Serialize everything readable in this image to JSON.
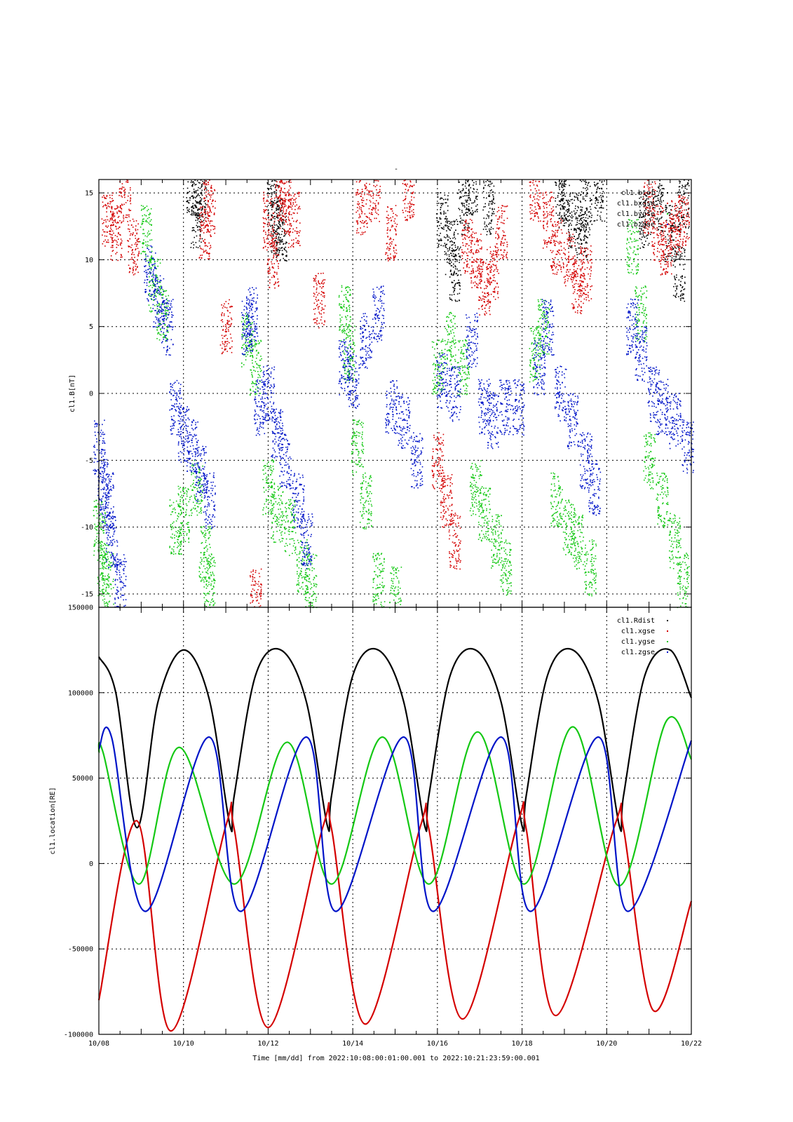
{
  "page_title": "-",
  "x_axis": {
    "label": "Time [mm/dd]  from 2022:10:08:00:01:00.001  to  2022:10:21:23:59:00.001",
    "ticks": [
      {
        "value": 0,
        "label": "10/08"
      },
      {
        "value": 2,
        "label": "10/10"
      },
      {
        "value": 4,
        "label": "10/12"
      },
      {
        "value": 6,
        "label": "10/14"
      },
      {
        "value": 8,
        "label": "10/16"
      },
      {
        "value": 10,
        "label": "10/18"
      },
      {
        "value": 12,
        "label": "10/20"
      },
      {
        "value": 14,
        "label": "10/22"
      }
    ],
    "range_days": [
      0,
      14
    ]
  },
  "colors": {
    "black": "#000000",
    "red": "#d40000",
    "green": "#14c814",
    "blue": "#0014c8"
  },
  "chart_data": [
    {
      "type": "scatter",
      "ylabel": "cl1.B[nT]",
      "ylim": [
        -16,
        16
      ],
      "yticks": [
        15,
        10,
        5,
        0,
        -5,
        -10,
        -15
      ],
      "xlim_days": [
        0,
        14
      ],
      "grid": true,
      "legend_position": "top-right",
      "series": [
        {
          "name": "cl1.btot",
          "color": "#000000",
          "points": [
            [
              2.2,
              15.5
            ],
            [
              2.3,
              13
            ],
            [
              2.4,
              15
            ],
            [
              4.1,
              14
            ],
            [
              4.2,
              12.5
            ],
            [
              4.3,
              12
            ],
            [
              8.1,
              13
            ],
            [
              8.3,
              11
            ],
            [
              8.4,
              9
            ],
            [
              8.6,
              14
            ],
            [
              8.8,
              15.5
            ],
            [
              9.2,
              14
            ],
            [
              10.9,
              15
            ],
            [
              11.0,
              14.5
            ],
            [
              11.2,
              13
            ],
            [
              11.4,
              12
            ],
            [
              11.5,
              14
            ],
            [
              11.8,
              15
            ],
            [
              12.9,
              13
            ],
            [
              13.2,
              14
            ],
            [
              13.5,
              12
            ],
            [
              13.7,
              9
            ],
            [
              13.8,
              14
            ]
          ]
        },
        {
          "name": "cl1.bxgse",
          "color": "#d40000",
          "points": [
            [
              0.2,
              13
            ],
            [
              0.4,
              12
            ],
            [
              0.6,
              15
            ],
            [
              0.8,
              11
            ],
            [
              2.6,
              14
            ],
            [
              2.5,
              12
            ],
            [
              3.0,
              5
            ],
            [
              4.0,
              13
            ],
            [
              4.1,
              10
            ],
            [
              4.3,
              15
            ],
            [
              4.4,
              14
            ],
            [
              4.6,
              13
            ],
            [
              5.2,
              7
            ],
            [
              6.2,
              14
            ],
            [
              6.5,
              15
            ],
            [
              6.9,
              12
            ],
            [
              7.3,
              15
            ],
            [
              8.0,
              -5
            ],
            [
              8.2,
              -8
            ],
            [
              8.4,
              -11
            ],
            [
              8.7,
              11
            ],
            [
              8.9,
              10
            ],
            [
              9.1,
              8
            ],
            [
              9.3,
              9
            ],
            [
              9.5,
              12
            ],
            [
              10.3,
              15
            ],
            [
              10.6,
              13
            ],
            [
              10.8,
              11
            ],
            [
              11.1,
              10
            ],
            [
              11.3,
              8
            ],
            [
              11.5,
              9
            ],
            [
              13.0,
              14
            ],
            [
              13.2,
              12
            ],
            [
              13.4,
              11
            ],
            [
              13.6,
              12.5
            ],
            [
              13.8,
              13
            ],
            [
              3.7,
              -15.2
            ]
          ]
        },
        {
          "name": "cl1.bygse",
          "color": "#14c814",
          "points": [
            [
              0.0,
              -10
            ],
            [
              0.1,
              -13
            ],
            [
              0.2,
              -14
            ],
            [
              1.1,
              12
            ],
            [
              1.3,
              8
            ],
            [
              1.5,
              6
            ],
            [
              1.8,
              -10
            ],
            [
              2.0,
              -9
            ],
            [
              2.3,
              -7
            ],
            [
              2.5,
              -12
            ],
            [
              2.6,
              -14
            ],
            [
              3.5,
              4
            ],
            [
              3.7,
              2
            ],
            [
              4.0,
              -7
            ],
            [
              4.2,
              -9
            ],
            [
              4.5,
              -10
            ],
            [
              4.8,
              -13
            ],
            [
              5.0,
              -14
            ],
            [
              5.8,
              6
            ],
            [
              5.9,
              3
            ],
            [
              6.1,
              -4
            ],
            [
              6.3,
              -8
            ],
            [
              6.6,
              -14
            ],
            [
              7.0,
              -15
            ],
            [
              8.0,
              2
            ],
            [
              8.3,
              4
            ],
            [
              8.6,
              2
            ],
            [
              8.9,
              -7
            ],
            [
              9.1,
              -9
            ],
            [
              9.4,
              -11
            ],
            [
              9.6,
              -13
            ],
            [
              10.3,
              3
            ],
            [
              10.5,
              5
            ],
            [
              10.8,
              -8
            ],
            [
              11.1,
              -10
            ],
            [
              11.3,
              -11
            ],
            [
              11.6,
              -13
            ],
            [
              12.6,
              11
            ],
            [
              12.8,
              6
            ],
            [
              13.0,
              -5
            ],
            [
              13.3,
              -8
            ],
            [
              13.6,
              -11
            ],
            [
              13.8,
              -14
            ]
          ]
        },
        {
          "name": "cl1.bzgse",
          "color": "#0014c8",
          "points": [
            [
              0.0,
              -4
            ],
            [
              0.1,
              -7
            ],
            [
              0.2,
              -8
            ],
            [
              0.3,
              -11
            ],
            [
              0.5,
              -14
            ],
            [
              1.2,
              9
            ],
            [
              1.4,
              7
            ],
            [
              1.6,
              5
            ],
            [
              1.8,
              -1
            ],
            [
              2.0,
              -3
            ],
            [
              2.2,
              -4
            ],
            [
              2.4,
              -6
            ],
            [
              2.6,
              -8
            ],
            [
              3.5,
              5
            ],
            [
              3.6,
              6
            ],
            [
              3.8,
              -1
            ],
            [
              4.0,
              0
            ],
            [
              4.2,
              -3
            ],
            [
              4.4,
              -5
            ],
            [
              4.7,
              -8
            ],
            [
              4.9,
              -11
            ],
            [
              5.8,
              2
            ],
            [
              6.0,
              1
            ],
            [
              6.3,
              4
            ],
            [
              6.6,
              6
            ],
            [
              6.9,
              -1
            ],
            [
              7.2,
              -2
            ],
            [
              7.5,
              -5
            ],
            [
              8.1,
              1
            ],
            [
              8.4,
              0
            ],
            [
              8.8,
              4
            ],
            [
              9.1,
              -1
            ],
            [
              9.3,
              -2
            ],
            [
              9.6,
              -1
            ],
            [
              9.9,
              -1
            ],
            [
              10.4,
              2
            ],
            [
              10.6,
              5
            ],
            [
              10.9,
              0
            ],
            [
              11.2,
              -2
            ],
            [
              11.5,
              -5
            ],
            [
              11.7,
              -7
            ],
            [
              12.6,
              5
            ],
            [
              12.8,
              3
            ],
            [
              13.1,
              0
            ],
            [
              13.3,
              -1
            ],
            [
              13.6,
              -2
            ],
            [
              13.9,
              -4
            ]
          ]
        }
      ]
    },
    {
      "type": "line",
      "ylabel": "cl1.location[RE]",
      "ylim": [
        -100000,
        150000
      ],
      "yticks": [
        150000,
        100000,
        50000,
        0,
        -50000,
        -100000
      ],
      "xlim_days": [
        0,
        14
      ],
      "grid": true,
      "legend_position": "top-right",
      "orbit_period_days": 2.27,
      "series": [
        {
          "name": "cl1.Rdist",
          "color": "#000000",
          "x": [
            0,
            0.4,
            0.9,
            1.4,
            2.0,
            2.6,
            3.1,
            3.2,
            3.7,
            4.3,
            4.9,
            5.4,
            5.5,
            6.0,
            6.6,
            7.2,
            7.7,
            7.8,
            8.3,
            8.9,
            9.5,
            10.0,
            10.1,
            10.6,
            11.2,
            11.8,
            12.3,
            12.4,
            12.9,
            13.5,
            14
          ],
          "values": [
            121000,
            100000,
            21000,
            95000,
            125000,
            97000,
            22000,
            40000,
            110000,
            125000,
            95000,
            22000,
            40000,
            110000,
            125000,
            95000,
            22000,
            40000,
            110000,
            125000,
            95000,
            22000,
            40000,
            110000,
            125000,
            95000,
            22000,
            40000,
            110000,
            125000,
            97000
          ]
        },
        {
          "name": "cl1.xgse",
          "color": "#d40000",
          "x": [
            0,
            0.9,
            1.7,
            3.0,
            3.2,
            4.0,
            5.3,
            5.5,
            6.3,
            7.6,
            7.8,
            8.6,
            9.9,
            10.1,
            10.8,
            12.2,
            12.4,
            13.1,
            14
          ],
          "values": [
            -80000,
            25000,
            -98000,
            22000,
            20000,
            -96000,
            22000,
            20000,
            -94000,
            22000,
            20000,
            -91000,
            24000,
            20000,
            -89000,
            23000,
            20000,
            -86000,
            -22000
          ]
        },
        {
          "name": "cl1.ygse",
          "color": "#14c814",
          "x": [
            0,
            0.1,
            0.95,
            1.9,
            3.2,
            4.45,
            5.5,
            6.7,
            7.8,
            8.95,
            10.05,
            11.2,
            12.3,
            13.4,
            14
          ],
          "values": [
            65000,
            65000,
            -12000,
            68000,
            -12000,
            71000,
            -12000,
            74000,
            -12000,
            77000,
            -12000,
            80000,
            -13000,
            83000,
            61000
          ]
        },
        {
          "name": "cl1.zgse",
          "color": "#0014c8",
          "x": [
            0,
            0.3,
            1.1,
            2.6,
            3.35,
            4.9,
            5.6,
            7.2,
            7.9,
            9.5,
            10.2,
            11.8,
            12.5,
            14
          ],
          "values": [
            67000,
            74000,
            -28000,
            74000,
            -28000,
            74000,
            -28000,
            74000,
            -28000,
            74000,
            -28000,
            74000,
            -28000,
            72000
          ]
        }
      ]
    }
  ]
}
